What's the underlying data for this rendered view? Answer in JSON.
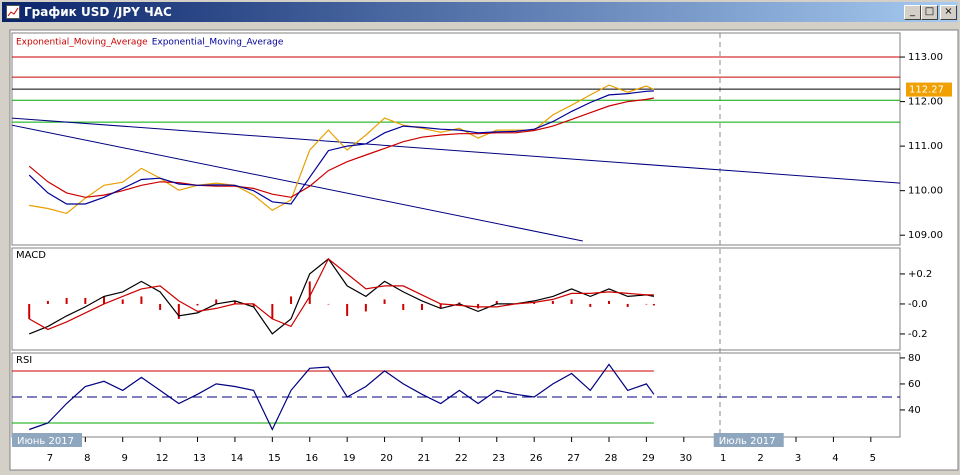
{
  "window": {
    "title": "График USD /JPY ЧАС"
  },
  "x_axis": {
    "x": [
      -0.5,
      0,
      0.5,
      1,
      1.5,
      2,
      2.5,
      3,
      3.5,
      4,
      4.5,
      5,
      5.5,
      6,
      6.5,
      7,
      7.5,
      8,
      8.5,
      9,
      9.5,
      10,
      10.5,
      11,
      11.5,
      12,
      12.5,
      13,
      13.5,
      14,
      14.5,
      15,
      15.5,
      16,
      16.2
    ],
    "xlim": [
      -0.96,
      22.78
    ],
    "xticks": [
      {
        "value": 0,
        "label": "7"
      },
      {
        "value": 1,
        "label": "8"
      },
      {
        "value": 2,
        "label": "9"
      },
      {
        "value": 3,
        "label": "12"
      },
      {
        "value": 4,
        "label": "13"
      },
      {
        "value": 5,
        "label": "14"
      },
      {
        "value": 6,
        "label": "15"
      },
      {
        "value": 7,
        "label": "16"
      },
      {
        "value": 8,
        "label": "19"
      },
      {
        "value": 9,
        "label": "20"
      },
      {
        "value": 10,
        "label": "21"
      },
      {
        "value": 11,
        "label": "22"
      },
      {
        "value": 12,
        "label": "23"
      },
      {
        "value": 13,
        "label": "26"
      },
      {
        "value": 14,
        "label": "27"
      },
      {
        "value": 15,
        "label": "28"
      },
      {
        "value": 16,
        "label": "29"
      },
      {
        "value": 17,
        "label": "30"
      },
      {
        "value": 18,
        "label": "1"
      },
      {
        "value": 19,
        "label": "2"
      },
      {
        "value": 20,
        "label": "3"
      },
      {
        "value": 21,
        "label": "4"
      },
      {
        "value": 22,
        "label": "5"
      }
    ],
    "month_labels": [
      {
        "value": -0.96,
        "label": "Июнь 2017"
      },
      {
        "value": 17.8,
        "label": "Июль 2017"
      }
    ]
  },
  "chart_data": [
    {
      "type": "line",
      "name": "price",
      "ylim": [
        108.78,
        113.54
      ],
      "yticks": [
        {
          "value": 113,
          "label": "113.00"
        },
        {
          "value": 112,
          "label": "112.00"
        },
        {
          "value": 111,
          "label": "111.00"
        },
        {
          "value": 110,
          "label": "110.00"
        },
        {
          "value": 109,
          "label": "109.00"
        }
      ],
      "last_price": 112.27,
      "series": [
        {
          "name": null,
          "color": "#e8a000",
          "values": [
            109.67,
            109.6,
            109.49,
            109.83,
            110.12,
            110.19,
            110.5,
            110.28,
            110.01,
            110.12,
            110.17,
            110.12,
            109.9,
            109.56,
            109.79,
            110.91,
            111.36,
            110.91,
            111.25,
            111.63,
            111.47,
            111.4,
            111.31,
            111.4,
            111.18,
            111.36,
            111.36,
            111.36,
            111.7,
            111.92,
            112.15,
            112.37,
            112.21,
            112.35,
            112.27
          ]
        },
        {
          "name": "Exponential_Moving_Average",
          "color": "#cc0000",
          "values": [
            110.55,
            110.2,
            109.95,
            109.85,
            109.9,
            110.0,
            110.12,
            110.2,
            110.18,
            110.12,
            110.1,
            110.1,
            110.05,
            109.92,
            109.85,
            110.1,
            110.45,
            110.65,
            110.8,
            110.95,
            111.1,
            111.2,
            111.25,
            111.28,
            111.28,
            111.3,
            111.3,
            111.35,
            111.45,
            111.6,
            111.75,
            111.9,
            112.0,
            112.05,
            112.08
          ]
        },
        {
          "name": "Exponential_Moving_Average",
          "color": "#000099",
          "values": [
            110.35,
            109.95,
            109.7,
            109.7,
            109.85,
            110.05,
            110.25,
            110.28,
            110.15,
            110.12,
            110.13,
            110.12,
            110.0,
            109.75,
            109.7,
            110.3,
            110.9,
            111.0,
            111.05,
            111.3,
            111.45,
            111.42,
            111.38,
            111.36,
            111.3,
            111.32,
            111.33,
            111.38,
            111.55,
            111.78,
            111.98,
            112.15,
            112.18,
            112.23,
            112.24
          ]
        }
      ],
      "hlines": [
        {
          "value": 113.0,
          "color": "#cc0000"
        },
        {
          "value": 112.55,
          "color": "#cc0000"
        },
        {
          "value": 112.28,
          "color": "#000000"
        },
        {
          "value": 112.03,
          "color": "#00aa00"
        },
        {
          "value": 111.54,
          "color": "#00aa00"
        }
      ],
      "trendlines": [
        {
          "x": [
            -0.96,
            22.78
          ],
          "values": [
            111.63,
            110.17
          ],
          "color": "#000080"
        },
        {
          "x": [
            -0.96,
            14.3
          ],
          "values": [
            111.47,
            108.87
          ],
          "color": "#000080"
        }
      ]
    },
    {
      "type": "macd",
      "title": "MACD",
      "ylim": [
        -0.307,
        0.373
      ],
      "yticks": [
        {
          "value": 0.2,
          "label": "+0.2"
        },
        {
          "value": 0,
          "label": "-0.0"
        },
        {
          "value": -0.2,
          "label": "-0.2"
        }
      ],
      "histogram": {
        "color": "#cc0000",
        "values": [
          -0.1,
          0.02,
          0.04,
          0.04,
          0.05,
          0.03,
          0.05,
          -0.04,
          -0.1,
          -0.01,
          0.03,
          0.02,
          -0.02,
          -0.1,
          0.05,
          0.15,
          0.0,
          -0.08,
          -0.05,
          0.03,
          -0.04,
          -0.04,
          -0.03,
          0.01,
          -0.03,
          0.02,
          0.0,
          0.01,
          0.02,
          0.03,
          -0.02,
          0.02,
          -0.02,
          0.0,
          -0.01
        ]
      },
      "series": [
        {
          "color": "#000000",
          "values": [
            -0.2,
            -0.15,
            -0.08,
            -0.02,
            0.05,
            0.08,
            0.15,
            0.08,
            -0.08,
            -0.06,
            0.0,
            0.02,
            -0.02,
            -0.2,
            -0.1,
            0.2,
            0.3,
            0.12,
            0.05,
            0.15,
            0.08,
            0.02,
            -0.03,
            0.0,
            -0.05,
            0.0,
            0.0,
            0.02,
            0.05,
            0.1,
            0.05,
            0.1,
            0.05,
            0.06,
            0.05
          ]
        },
        {
          "color": "#cc0000",
          "values": [
            -0.1,
            -0.17,
            -0.12,
            -0.06,
            0.0,
            0.05,
            0.1,
            0.12,
            0.02,
            -0.05,
            -0.03,
            0.0,
            0.0,
            -0.1,
            -0.15,
            0.05,
            0.3,
            0.2,
            0.1,
            0.12,
            0.12,
            0.06,
            0.0,
            -0.01,
            -0.02,
            -0.02,
            0.0,
            0.01,
            0.03,
            0.07,
            0.07,
            0.08,
            0.07,
            0.06,
            0.06
          ]
        }
      ]
    },
    {
      "type": "rsi",
      "title": "RSI",
      "ylim": [
        19.2,
        83.8
      ],
      "yticks": [
        80,
        60,
        40
      ],
      "hlines": [
        {
          "value": 70,
          "color": "#cc0000"
        },
        {
          "value": 50,
          "color": "#000080",
          "dashed": true
        },
        {
          "value": 30,
          "color": "#00aa00"
        }
      ],
      "series": [
        {
          "color": "#000080",
          "values": [
            25,
            30,
            45,
            58,
            62,
            55,
            65,
            55,
            45,
            52,
            60,
            58,
            55,
            25,
            55,
            72,
            73,
            50,
            58,
            70,
            60,
            52,
            45,
            55,
            45,
            55,
            52,
            50,
            60,
            68,
            55,
            75,
            55,
            60,
            52
          ]
        }
      ]
    }
  ]
}
